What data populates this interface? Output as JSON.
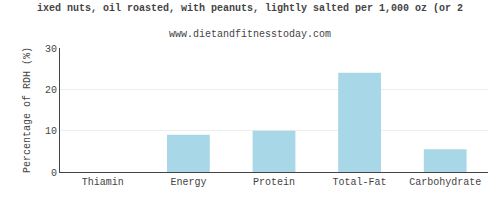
{
  "chart_data": {
    "type": "bar",
    "title": "ixed nuts, oil roasted, with peanuts, lightly salted per 1,000 oz (or 2",
    "subtitle": "www.dietandfitnesstoday.com",
    "ylabel": "Percentage of RDH (%)",
    "categories": [
      "Thiamin",
      "Energy",
      "Protein",
      "Total-Fat",
      "Carbohydrate"
    ],
    "values": [
      0.0,
      9.0,
      10.0,
      24.0,
      5.5
    ],
    "color": "#a8d8e8",
    "ylim": [
      0,
      30
    ],
    "yticks": [
      0,
      10,
      20,
      30
    ],
    "grid": true
  }
}
